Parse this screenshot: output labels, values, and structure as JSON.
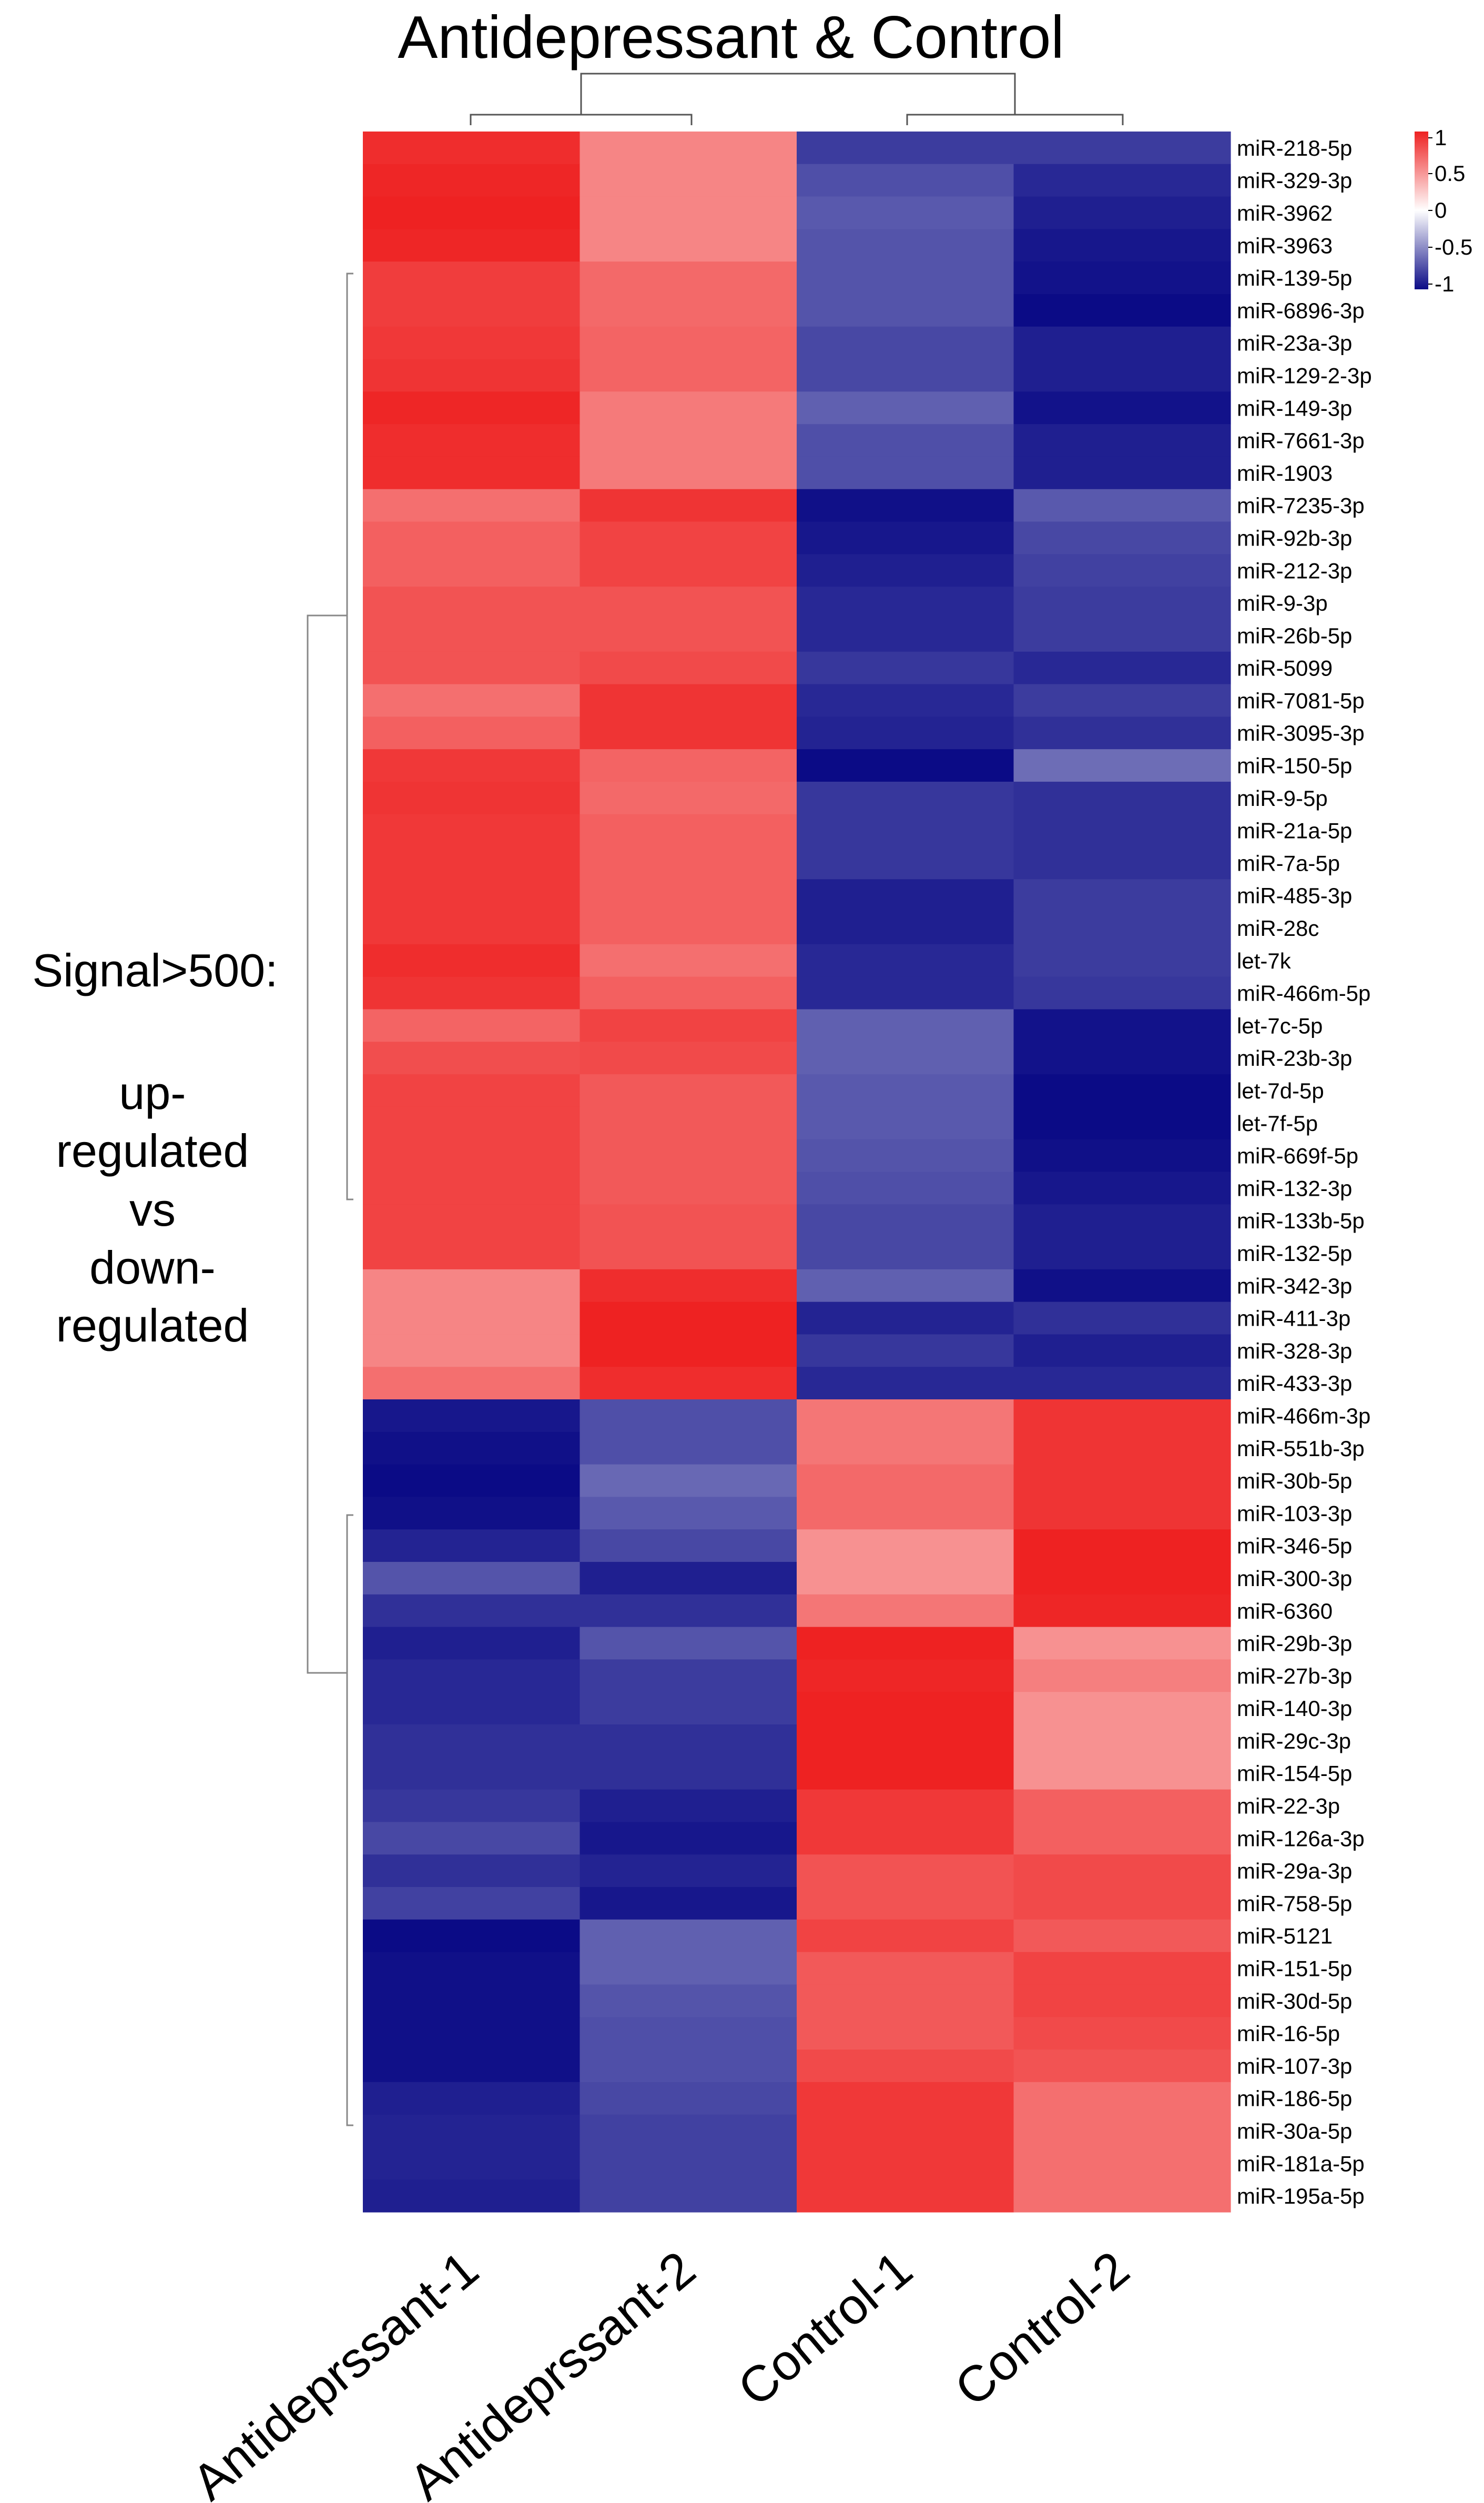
{
  "chart_data": {
    "type": "heatmap",
    "title": "Antidepressant & Control",
    "side_annotation": {
      "heading": "Signal>500:",
      "lines": [
        "up-",
        "regulated",
        "vs",
        "down-",
        "regulated"
      ]
    },
    "columns": [
      "Antideprssant-1",
      "Antideprssant-2",
      "Control-1",
      "Control-2"
    ],
    "scale": {
      "min": -1,
      "max": 1,
      "low_color": "#0b0b86",
      "mid_color": "#ffffff",
      "high_color": "#ee2222",
      "ticks": [
        "1",
        "0.5",
        "0",
        "-0.5",
        "-1"
      ]
    },
    "rows": [
      {
        "name": "miR-218-5p",
        "values": [
          0.95,
          0.55,
          -0.8,
          -0.8
        ]
      },
      {
        "name": "miR-329-3p",
        "values": [
          0.98,
          0.55,
          -0.72,
          -0.88
        ]
      },
      {
        "name": "miR-3962",
        "values": [
          1.0,
          0.55,
          -0.68,
          -0.92
        ]
      },
      {
        "name": "miR-3963",
        "values": [
          0.98,
          0.55,
          -0.7,
          -0.95
        ]
      },
      {
        "name": "miR-139-5p",
        "values": [
          0.88,
          0.68,
          -0.7,
          -0.97
        ]
      },
      {
        "name": "miR-6896-3p",
        "values": [
          0.88,
          0.68,
          -0.7,
          -1.0
        ]
      },
      {
        "name": "miR-23a-3p",
        "values": [
          0.9,
          0.7,
          -0.75,
          -0.92
        ]
      },
      {
        "name": "miR-129-2-3p",
        "values": [
          0.92,
          0.7,
          -0.75,
          -0.92
        ]
      },
      {
        "name": "miR-149-3p",
        "values": [
          0.98,
          0.6,
          -0.65,
          -0.97
        ]
      },
      {
        "name": "miR-7661-3p",
        "values": [
          0.95,
          0.6,
          -0.72,
          -0.92
        ]
      },
      {
        "name": "miR-1903",
        "values": [
          0.95,
          0.6,
          -0.72,
          -0.92
        ]
      },
      {
        "name": "miR-7235-3p",
        "values": [
          0.65,
          0.92,
          -0.98,
          -0.68
        ]
      },
      {
        "name": "miR-92b-3p",
        "values": [
          0.72,
          0.85,
          -0.95,
          -0.75
        ]
      },
      {
        "name": "miR-212-3p",
        "values": [
          0.72,
          0.85,
          -0.92,
          -0.78
        ]
      },
      {
        "name": "miR-9-3p",
        "values": [
          0.78,
          0.78,
          -0.88,
          -0.8
        ]
      },
      {
        "name": "miR-26b-5p",
        "values": [
          0.78,
          0.78,
          -0.88,
          -0.8
        ]
      },
      {
        "name": "miR-5099",
        "values": [
          0.78,
          0.82,
          -0.82,
          -0.88
        ]
      },
      {
        "name": "miR-7081-5p",
        "values": [
          0.65,
          0.92,
          -0.88,
          -0.8
        ]
      },
      {
        "name": "miR-3095-3p",
        "values": [
          0.72,
          0.92,
          -0.9,
          -0.85
        ]
      },
      {
        "name": "miR-150-5p",
        "values": [
          0.9,
          0.7,
          -1.0,
          -0.6
        ]
      },
      {
        "name": "miR-9-5p",
        "values": [
          0.92,
          0.68,
          -0.82,
          -0.85
        ]
      },
      {
        "name": "miR-21a-5p",
        "values": [
          0.9,
          0.72,
          -0.82,
          -0.85
        ]
      },
      {
        "name": "miR-7a-5p",
        "values": [
          0.9,
          0.72,
          -0.82,
          -0.85
        ]
      },
      {
        "name": "miR-485-3p",
        "values": [
          0.9,
          0.72,
          -0.92,
          -0.8
        ]
      },
      {
        "name": "miR-28c",
        "values": [
          0.9,
          0.72,
          -0.92,
          -0.8
        ]
      },
      {
        "name": "let-7k",
        "values": [
          0.95,
          0.65,
          -0.88,
          -0.8
        ]
      },
      {
        "name": "miR-466m-5p",
        "values": [
          0.92,
          0.72,
          -0.88,
          -0.82
        ]
      },
      {
        "name": "let-7c-5p",
        "values": [
          0.7,
          0.85,
          -0.65,
          -0.97
        ]
      },
      {
        "name": "miR-23b-3p",
        "values": [
          0.8,
          0.82,
          -0.65,
          -0.97
        ]
      },
      {
        "name": "let-7d-5p",
        "values": [
          0.85,
          0.75,
          -0.68,
          -1.0
        ]
      },
      {
        "name": "let-7f-5p",
        "values": [
          0.85,
          0.75,
          -0.68,
          -1.0
        ]
      },
      {
        "name": "miR-669f-5p",
        "values": [
          0.85,
          0.75,
          -0.7,
          -0.98
        ]
      },
      {
        "name": "miR-132-3p",
        "values": [
          0.85,
          0.75,
          -0.72,
          -0.95
        ]
      },
      {
        "name": "miR-133b-5p",
        "values": [
          0.85,
          0.78,
          -0.75,
          -0.92
        ]
      },
      {
        "name": "miR-132-5p",
        "values": [
          0.85,
          0.78,
          -0.75,
          -0.92
        ]
      },
      {
        "name": "miR-342-3p",
        "values": [
          0.55,
          0.95,
          -0.65,
          -0.98
        ]
      },
      {
        "name": "miR-411-3p",
        "values": [
          0.55,
          1.0,
          -0.9,
          -0.85
        ]
      },
      {
        "name": "miR-328-3p",
        "values": [
          0.55,
          1.0,
          -0.82,
          -0.92
        ]
      },
      {
        "name": "miR-433-3p",
        "values": [
          0.65,
          0.95,
          -0.88,
          -0.88
        ]
      },
      {
        "name": "miR-466m-3p",
        "values": [
          -0.95,
          -0.72,
          0.62,
          0.92
        ]
      },
      {
        "name": "miR-551b-3p",
        "values": [
          -0.98,
          -0.72,
          0.62,
          0.92
        ]
      },
      {
        "name": "miR-30b-5p",
        "values": [
          -1.0,
          -0.62,
          0.68,
          0.92
        ]
      },
      {
        "name": "miR-103-3p",
        "values": [
          -0.98,
          -0.68,
          0.68,
          0.92
        ]
      },
      {
        "name": "miR-346-5p",
        "values": [
          -0.9,
          -0.75,
          0.5,
          1.0
        ]
      },
      {
        "name": "miR-300-3p",
        "values": [
          -0.7,
          -0.92,
          0.5,
          1.0
        ]
      },
      {
        "name": "miR-6360",
        "values": [
          -0.85,
          -0.85,
          0.62,
          0.98
        ]
      },
      {
        "name": "miR-29b-3p",
        "values": [
          -0.92,
          -0.7,
          1.0,
          0.5
        ]
      },
      {
        "name": "miR-27b-3p",
        "values": [
          -0.88,
          -0.8,
          0.98,
          0.58
        ]
      },
      {
        "name": "miR-140-3p",
        "values": [
          -0.88,
          -0.8,
          1.0,
          0.5
        ]
      },
      {
        "name": "miR-29c-3p",
        "values": [
          -0.85,
          -0.85,
          1.0,
          0.5
        ]
      },
      {
        "name": "miR-154-5p",
        "values": [
          -0.85,
          -0.85,
          1.0,
          0.5
        ]
      },
      {
        "name": "miR-22-3p",
        "values": [
          -0.82,
          -0.92,
          0.9,
          0.72
        ]
      },
      {
        "name": "miR-126a-3p",
        "values": [
          -0.75,
          -0.95,
          0.9,
          0.72
        ]
      },
      {
        "name": "miR-29a-3p",
        "values": [
          -0.85,
          -0.9,
          0.78,
          0.82
        ]
      },
      {
        "name": "miR-758-5p",
        "values": [
          -0.78,
          -0.95,
          0.78,
          0.82
        ]
      },
      {
        "name": "miR-5121",
        "values": [
          -1.0,
          -0.65,
          0.85,
          0.75
        ]
      },
      {
        "name": "miR-151-5p",
        "values": [
          -0.98,
          -0.65,
          0.75,
          0.85
        ]
      },
      {
        "name": "miR-30d-5p",
        "values": [
          -0.98,
          -0.7,
          0.75,
          0.85
        ]
      },
      {
        "name": "miR-16-5p",
        "values": [
          -0.98,
          -0.72,
          0.75,
          0.82
        ]
      },
      {
        "name": "miR-107-3p",
        "values": [
          -0.98,
          -0.72,
          0.82,
          0.78
        ]
      },
      {
        "name": "miR-186-5p",
        "values": [
          -0.92,
          -0.75,
          0.9,
          0.65
        ]
      },
      {
        "name": "miR-30a-5p",
        "values": [
          -0.9,
          -0.78,
          0.9,
          0.65
        ]
      },
      {
        "name": "miR-181a-5p",
        "values": [
          -0.9,
          -0.78,
          0.9,
          0.65
        ]
      },
      {
        "name": "miR-195a-5p",
        "values": [
          -0.92,
          -0.78,
          0.9,
          0.65
        ]
      }
    ]
  }
}
